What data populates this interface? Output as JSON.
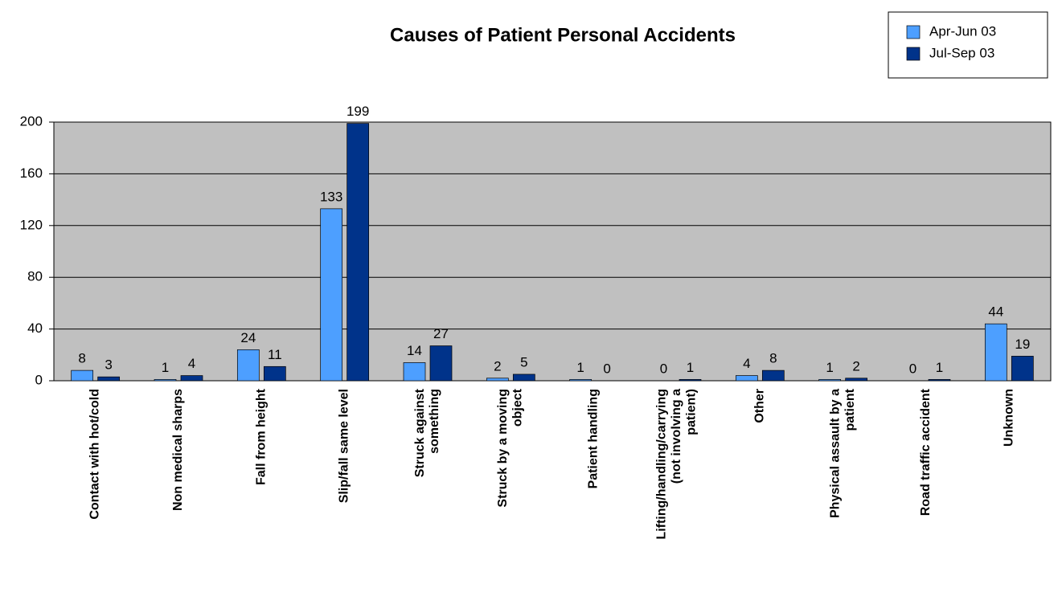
{
  "chart_data": {
    "type": "bar",
    "title": "Causes of Patient Personal Accidents",
    "categories": [
      "Contact with hot/cold",
      "Non medical sharps",
      "Fall from height",
      "Slip/fall same level",
      "Struck against something",
      "Struck by a moving object",
      "Patient handling",
      "Lifting/handling/carrying (not involving a patient)",
      "Other",
      "Physical assault by a patient",
      "Road traffic accident",
      "Unknown"
    ],
    "series": [
      {
        "name": "Apr-Jun 03",
        "color": "#4d9fff",
        "values": [
          8,
          1,
          24,
          133,
          14,
          2,
          1,
          0,
          4,
          1,
          0,
          44
        ]
      },
      {
        "name": "Jul-Sep 03",
        "color": "#00338a",
        "values": [
          3,
          4,
          11,
          199,
          27,
          5,
          0,
          1,
          8,
          2,
          1,
          19
        ]
      }
    ],
    "ylim": [
      0,
      200
    ],
    "yticks": [
      0,
      40,
      80,
      120,
      160,
      200
    ],
    "grid": true,
    "plot_background": "#c0c0c0",
    "legend": "top-right"
  }
}
